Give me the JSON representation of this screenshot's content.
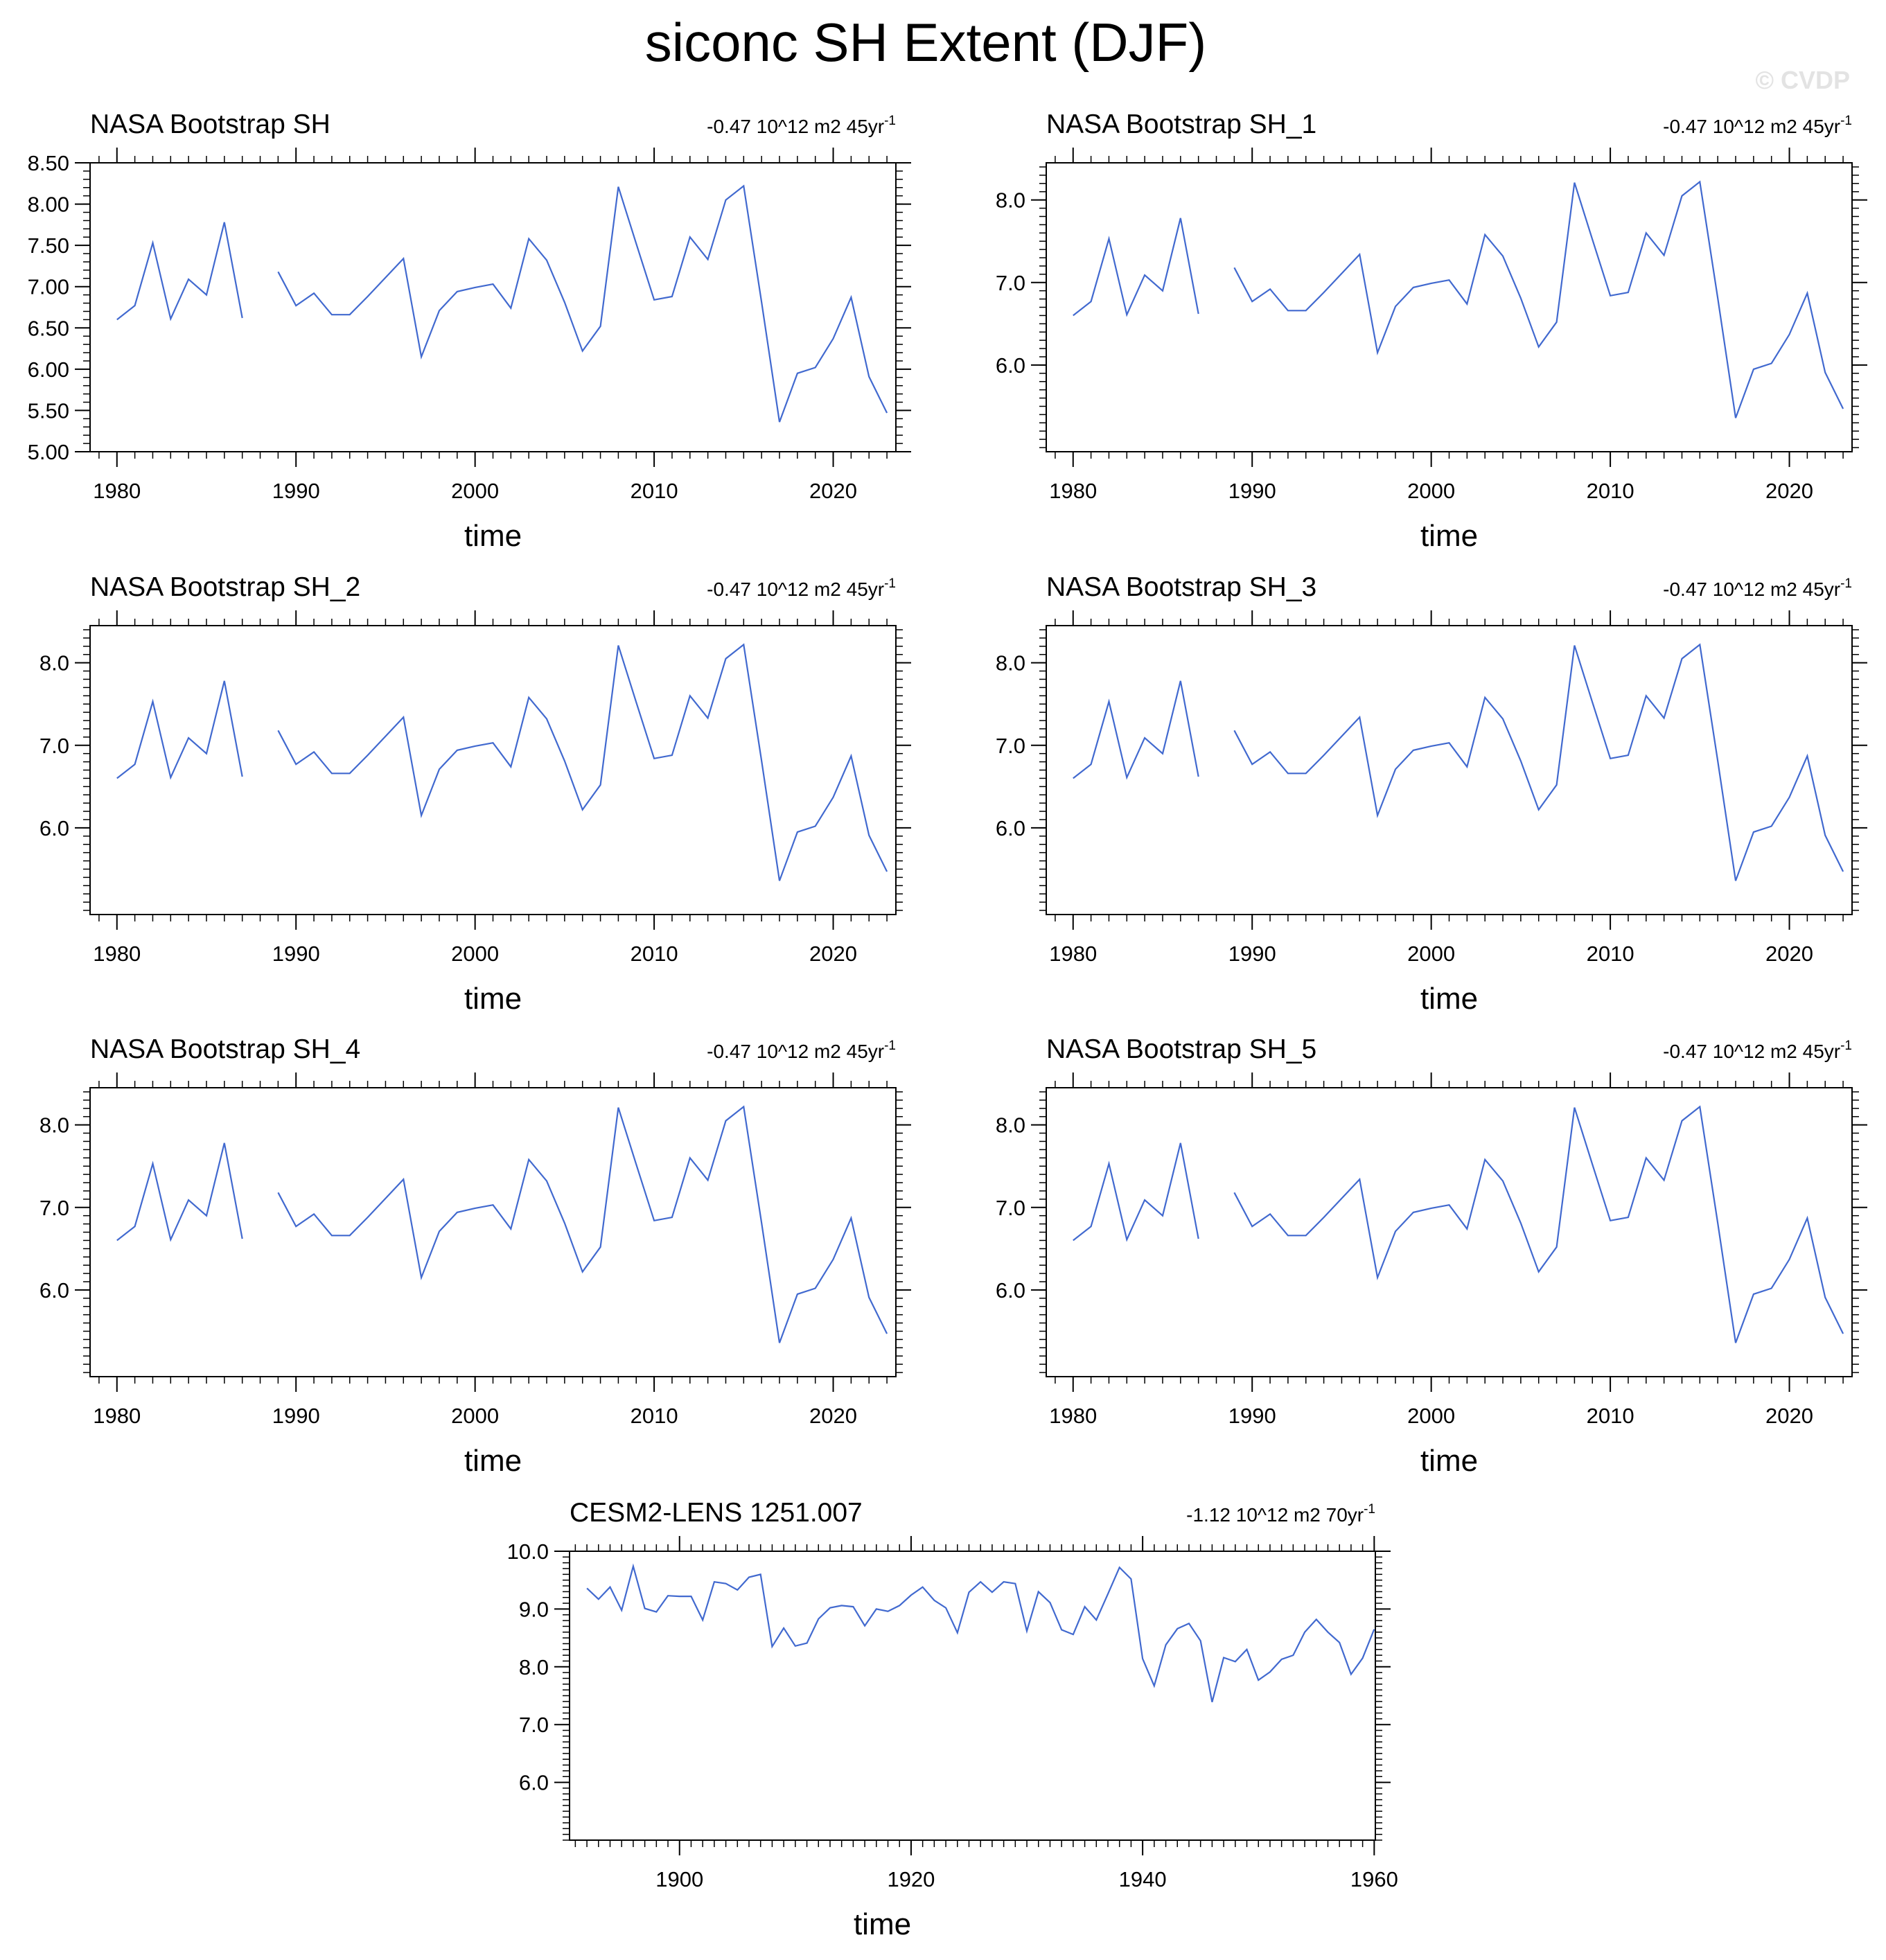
{
  "figure": {
    "title": "siconc SH Extent (DJF)",
    "watermark": "© CVDP",
    "line_color": "#4169cf",
    "axis_color": "#000000"
  },
  "chart_data": [
    {
      "type": "line",
      "title": "NASA Bootstrap SH",
      "trend_label": "-0.47 10^12 m2 45yr",
      "trend_exponent": "-1",
      "xlabel": "time",
      "ylabel": "",
      "xlim": [
        1978.5,
        2023.5
      ],
      "ylim": [
        5.0,
        8.5
      ],
      "xticks": [
        1980,
        1990,
        2000,
        2010,
        2020
      ],
      "yticks": [
        5.0,
        5.5,
        6.0,
        6.5,
        7.0,
        7.5,
        8.0,
        8.5
      ],
      "ytick_decimals": 2,
      "series": [
        {
          "x": [
            1980,
            1981,
            1982,
            1983,
            1984,
            1985,
            1986,
            1987,
            1988,
            1989,
            1990,
            1991,
            1992,
            1993,
            1994,
            1995,
            1996,
            1997,
            1998,
            1999,
            2000,
            2001,
            2002,
            2003,
            2004,
            2005,
            2006,
            2007,
            2008,
            2009,
            2010,
            2011,
            2012,
            2013,
            2014,
            2015,
            2016,
            2017,
            2018,
            2019,
            2020,
            2021,
            2022,
            2023
          ],
          "y": [
            6.6,
            6.77,
            7.53,
            6.61,
            7.09,
            6.9,
            7.78,
            6.62,
            null,
            7.18,
            6.77,
            6.92,
            6.66,
            6.66,
            6.88,
            7.11,
            7.34,
            6.15,
            6.71,
            6.94,
            6.99,
            7.03,
            6.74,
            7.58,
            7.32,
            6.81,
            6.22,
            6.52,
            8.21,
            7.52,
            6.84,
            6.88,
            7.6,
            7.33,
            8.05,
            8.22,
            6.81,
            5.36,
            5.95,
            6.02,
            6.37,
            6.87,
            5.91,
            5.47
          ]
        }
      ]
    },
    {
      "type": "line",
      "title": "NASA Bootstrap SH_1",
      "trend_label": "-0.47 10^12 m2 45yr",
      "trend_exponent": "-1",
      "xlabel": "time",
      "ylabel": "",
      "xlim": [
        1978.5,
        2023.5
      ],
      "ylim": [
        4.95,
        8.45
      ],
      "xticks": [
        1980,
        1990,
        2000,
        2010,
        2020
      ],
      "yticks": [
        6.0,
        7.0,
        8.0
      ],
      "ytick_decimals": 1,
      "series": [
        {
          "x": [
            1980,
            1981,
            1982,
            1983,
            1984,
            1985,
            1986,
            1987,
            1988,
            1989,
            1990,
            1991,
            1992,
            1993,
            1994,
            1995,
            1996,
            1997,
            1998,
            1999,
            2000,
            2001,
            2002,
            2003,
            2004,
            2005,
            2006,
            2007,
            2008,
            2009,
            2010,
            2011,
            2012,
            2013,
            2014,
            2015,
            2016,
            2017,
            2018,
            2019,
            2020,
            2021,
            2022,
            2023
          ],
          "y": [
            6.6,
            6.77,
            7.53,
            6.61,
            7.09,
            6.9,
            7.78,
            6.62,
            null,
            7.18,
            6.77,
            6.92,
            6.66,
            6.66,
            6.88,
            7.11,
            7.34,
            6.15,
            6.71,
            6.94,
            6.99,
            7.03,
            6.74,
            7.58,
            7.32,
            6.81,
            6.22,
            6.52,
            8.21,
            7.52,
            6.84,
            6.88,
            7.6,
            7.33,
            8.05,
            8.22,
            6.81,
            5.36,
            5.95,
            6.02,
            6.37,
            6.87,
            5.91,
            5.47
          ]
        }
      ]
    },
    {
      "type": "line",
      "title": "NASA Bootstrap SH_2",
      "trend_label": "-0.47 10^12 m2 45yr",
      "trend_exponent": "-1",
      "xlabel": "time",
      "ylabel": "",
      "xlim": [
        1978.5,
        2023.5
      ],
      "ylim": [
        4.95,
        8.45
      ],
      "xticks": [
        1980,
        1990,
        2000,
        2010,
        2020
      ],
      "yticks": [
        6.0,
        7.0,
        8.0
      ],
      "ytick_decimals": 1,
      "series": [
        {
          "x": [
            1980,
            1981,
            1982,
            1983,
            1984,
            1985,
            1986,
            1987,
            1988,
            1989,
            1990,
            1991,
            1992,
            1993,
            1994,
            1995,
            1996,
            1997,
            1998,
            1999,
            2000,
            2001,
            2002,
            2003,
            2004,
            2005,
            2006,
            2007,
            2008,
            2009,
            2010,
            2011,
            2012,
            2013,
            2014,
            2015,
            2016,
            2017,
            2018,
            2019,
            2020,
            2021,
            2022,
            2023
          ],
          "y": [
            6.6,
            6.77,
            7.53,
            6.61,
            7.09,
            6.9,
            7.78,
            6.62,
            null,
            7.18,
            6.77,
            6.92,
            6.66,
            6.66,
            6.88,
            7.11,
            7.34,
            6.15,
            6.71,
            6.94,
            6.99,
            7.03,
            6.74,
            7.58,
            7.32,
            6.81,
            6.22,
            6.52,
            8.21,
            7.52,
            6.84,
            6.88,
            7.6,
            7.33,
            8.05,
            8.22,
            6.81,
            5.36,
            5.95,
            6.02,
            6.37,
            6.87,
            5.91,
            5.47
          ]
        }
      ]
    },
    {
      "type": "line",
      "title": "NASA Bootstrap SH_3",
      "trend_label": "-0.47 10^12 m2 45yr",
      "trend_exponent": "-1",
      "xlabel": "time",
      "ylabel": "",
      "xlim": [
        1978.5,
        2023.5
      ],
      "ylim": [
        4.95,
        8.45
      ],
      "xticks": [
        1980,
        1990,
        2000,
        2010,
        2020
      ],
      "yticks": [
        6.0,
        7.0,
        8.0
      ],
      "ytick_decimals": 1,
      "series": [
        {
          "x": [
            1980,
            1981,
            1982,
            1983,
            1984,
            1985,
            1986,
            1987,
            1988,
            1989,
            1990,
            1991,
            1992,
            1993,
            1994,
            1995,
            1996,
            1997,
            1998,
            1999,
            2000,
            2001,
            2002,
            2003,
            2004,
            2005,
            2006,
            2007,
            2008,
            2009,
            2010,
            2011,
            2012,
            2013,
            2014,
            2015,
            2016,
            2017,
            2018,
            2019,
            2020,
            2021,
            2022,
            2023
          ],
          "y": [
            6.6,
            6.77,
            7.53,
            6.61,
            7.09,
            6.9,
            7.78,
            6.62,
            null,
            7.18,
            6.77,
            6.92,
            6.66,
            6.66,
            6.88,
            7.11,
            7.34,
            6.15,
            6.71,
            6.94,
            6.99,
            7.03,
            6.74,
            7.58,
            7.32,
            6.81,
            6.22,
            6.52,
            8.21,
            7.52,
            6.84,
            6.88,
            7.6,
            7.33,
            8.05,
            8.22,
            6.81,
            5.36,
            5.95,
            6.02,
            6.37,
            6.87,
            5.91,
            5.47
          ]
        }
      ]
    },
    {
      "type": "line",
      "title": "NASA Bootstrap SH_4",
      "trend_label": "-0.47 10^12 m2 45yr",
      "trend_exponent": "-1",
      "xlabel": "time",
      "ylabel": "",
      "xlim": [
        1978.5,
        2023.5
      ],
      "ylim": [
        4.95,
        8.45
      ],
      "xticks": [
        1980,
        1990,
        2000,
        2010,
        2020
      ],
      "yticks": [
        6.0,
        7.0,
        8.0
      ],
      "ytick_decimals": 1,
      "series": [
        {
          "x": [
            1980,
            1981,
            1982,
            1983,
            1984,
            1985,
            1986,
            1987,
            1988,
            1989,
            1990,
            1991,
            1992,
            1993,
            1994,
            1995,
            1996,
            1997,
            1998,
            1999,
            2000,
            2001,
            2002,
            2003,
            2004,
            2005,
            2006,
            2007,
            2008,
            2009,
            2010,
            2011,
            2012,
            2013,
            2014,
            2015,
            2016,
            2017,
            2018,
            2019,
            2020,
            2021,
            2022,
            2023
          ],
          "y": [
            6.6,
            6.77,
            7.53,
            6.61,
            7.09,
            6.9,
            7.78,
            6.62,
            null,
            7.18,
            6.77,
            6.92,
            6.66,
            6.66,
            6.88,
            7.11,
            7.34,
            6.15,
            6.71,
            6.94,
            6.99,
            7.03,
            6.74,
            7.58,
            7.32,
            6.81,
            6.22,
            6.52,
            8.21,
            7.52,
            6.84,
            6.88,
            7.6,
            7.33,
            8.05,
            8.22,
            6.81,
            5.36,
            5.95,
            6.02,
            6.37,
            6.87,
            5.91,
            5.47
          ]
        }
      ]
    },
    {
      "type": "line",
      "title": "NASA Bootstrap SH_5",
      "trend_label": "-0.47 10^12 m2 45yr",
      "trend_exponent": "-1",
      "xlabel": "time",
      "ylabel": "",
      "xlim": [
        1978.5,
        2023.5
      ],
      "ylim": [
        4.95,
        8.45
      ],
      "xticks": [
        1980,
        1990,
        2000,
        2010,
        2020
      ],
      "yticks": [
        6.0,
        7.0,
        8.0
      ],
      "ytick_decimals": 1,
      "series": [
        {
          "x": [
            1980,
            1981,
            1982,
            1983,
            1984,
            1985,
            1986,
            1987,
            1988,
            1989,
            1990,
            1991,
            1992,
            1993,
            1994,
            1995,
            1996,
            1997,
            1998,
            1999,
            2000,
            2001,
            2002,
            2003,
            2004,
            2005,
            2006,
            2007,
            2008,
            2009,
            2010,
            2011,
            2012,
            2013,
            2014,
            2015,
            2016,
            2017,
            2018,
            2019,
            2020,
            2021,
            2022,
            2023
          ],
          "y": [
            6.6,
            6.77,
            7.53,
            6.61,
            7.09,
            6.9,
            7.78,
            6.62,
            null,
            7.18,
            6.77,
            6.92,
            6.66,
            6.66,
            6.88,
            7.11,
            7.34,
            6.15,
            6.71,
            6.94,
            6.99,
            7.03,
            6.74,
            7.58,
            7.32,
            6.81,
            6.22,
            6.52,
            8.21,
            7.52,
            6.84,
            6.88,
            7.6,
            7.33,
            8.05,
            8.22,
            6.81,
            5.36,
            5.95,
            6.02,
            6.37,
            6.87,
            5.91,
            5.47
          ]
        }
      ]
    },
    {
      "type": "line",
      "title": "CESM2-LENS 1251.007",
      "trend_label": "-1.12 10^12 m2 70yr",
      "trend_exponent": "-1",
      "xlabel": "time",
      "ylabel": "",
      "xlim": [
        1890.5,
        1960.1
      ],
      "ylim": [
        5.0,
        10.0
      ],
      "xticks": [
        1900,
        1920,
        1940,
        1960
      ],
      "yticks": [
        6.0,
        7.0,
        8.0,
        9.0,
        10.0
      ],
      "ytick_decimals": 1,
      "series": [
        {
          "x": [
            1892,
            1893,
            1894,
            1895,
            1896,
            1897,
            1898,
            1899,
            1900,
            1901,
            1902,
            1903,
            1904,
            1905,
            1906,
            1907,
            1908,
            1909,
            1910,
            1911,
            1912,
            1913,
            1914,
            1915,
            1916,
            1917,
            1918,
            1919,
            1920,
            1921,
            1922,
            1923,
            1924,
            1925,
            1926,
            1927,
            1928,
            1929,
            1930,
            1931,
            1932,
            1933,
            1934,
            1935,
            1936,
            1937,
            1938,
            1939,
            1940,
            1941,
            1942,
            1943,
            1944,
            1945,
            1946,
            1947,
            1948,
            1949,
            1950,
            1951,
            1952,
            1953,
            1954,
            1955,
            1956,
            1957,
            1958,
            1959,
            1960
          ],
          "y": [
            9.36,
            9.17,
            9.38,
            8.98,
            9.74,
            9.01,
            8.95,
            9.23,
            9.22,
            9.22,
            8.81,
            9.47,
            9.44,
            9.33,
            9.55,
            9.6,
            8.35,
            8.67,
            8.36,
            8.41,
            8.83,
            9.02,
            9.06,
            9.04,
            8.71,
            9.0,
            8.96,
            9.06,
            9.24,
            9.38,
            9.15,
            9.02,
            8.59,
            9.29,
            9.47,
            9.29,
            9.47,
            9.44,
            8.62,
            9.3,
            9.11,
            8.64,
            8.56,
            9.04,
            8.81,
            9.26,
            9.72,
            9.52,
            8.14,
            7.67,
            8.38,
            8.66,
            8.75,
            8.45,
            7.39,
            8.16,
            8.09,
            8.3,
            7.77,
            7.91,
            8.13,
            8.2,
            8.6,
            8.82,
            8.6,
            8.42,
            7.87,
            8.15,
            8.65
          ]
        }
      ]
    }
  ]
}
